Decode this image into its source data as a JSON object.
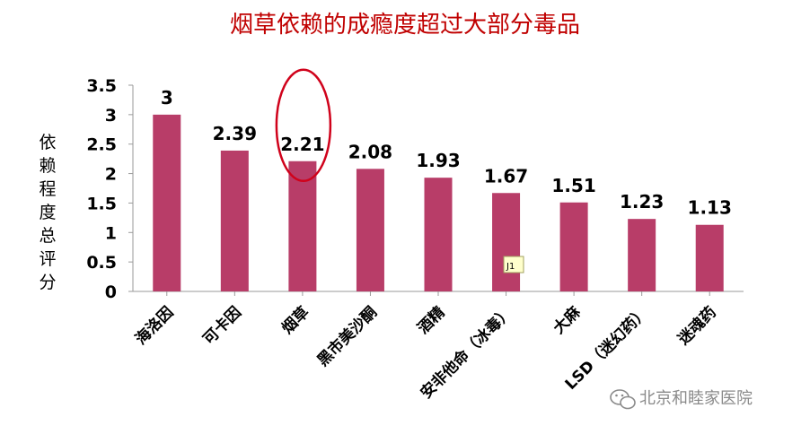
{
  "chart_data": {
    "type": "bar",
    "title": "烟草依赖的成瘾度超过大部分毒品",
    "ylabel": "依赖程度总评分",
    "xlabel": "",
    "categories": [
      "海洛因",
      "可卡因",
      "烟草",
      "黑市美沙酮",
      "酒精",
      "安非他命（冰毒）",
      "大麻",
      "LSD（迷幻药）",
      "迷魂药"
    ],
    "values": [
      3,
      2.39,
      2.21,
      2.08,
      1.93,
      1.67,
      1.51,
      1.23,
      1.13
    ],
    "data_labels": [
      "3",
      "2.39",
      "2.21",
      "2.08",
      "1.93",
      "1.67",
      "1.51",
      "1.23",
      "1.13"
    ],
    "ylim": [
      0,
      3.5
    ],
    "yticks": [
      "0",
      "0.5",
      "1",
      "1.5",
      "2",
      "2.5",
      "3",
      "3.5"
    ],
    "grid": false,
    "bar_color": "#b83d68",
    "highlight_category": "烟草",
    "highlight_color": "#d0021b"
  },
  "annotation": {
    "note_label": "J1"
  },
  "watermark": {
    "text": "北京和睦家医院"
  }
}
